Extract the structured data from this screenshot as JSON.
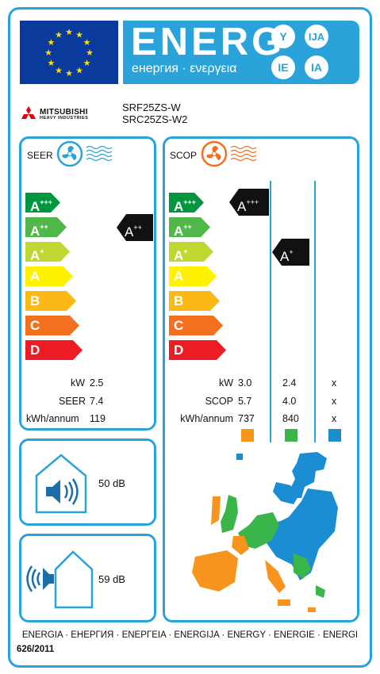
{
  "header": {
    "energy_word": "ENERG",
    "energy_sub": "енергия · ενεργεια",
    "lang_codes": [
      "Y",
      "IJA",
      "IE",
      "IA"
    ]
  },
  "product": {
    "brand_line1": "MITSUBISHI",
    "brand_line2": "HEAVY INDUSTRIES",
    "model_indoor": "SRF25ZS-W",
    "model_outdoor": "SRC25ZS-W2"
  },
  "cooling": {
    "label": "SEER",
    "classes": [
      {
        "base": "A",
        "sup": "+++",
        "color": "#00963f"
      },
      {
        "base": "A",
        "sup": "++",
        "color": "#50b848"
      },
      {
        "base": "A",
        "sup": "+",
        "color": "#bfd730"
      },
      {
        "base": "A",
        "sup": "",
        "color": "#fff200"
      },
      {
        "base": "B",
        "sup": "",
        "color": "#fcb814"
      },
      {
        "base": "C",
        "sup": "",
        "color": "#f37021"
      },
      {
        "base": "D",
        "sup": "",
        "color": "#ed1c24"
      }
    ],
    "rating": {
      "base": "A",
      "sup": "++"
    },
    "kw_label": "kW",
    "kw_value": "2.5",
    "seer_label": "SEER",
    "seer_value": "7.4",
    "kwh_label": "kWh/annum",
    "kwh_value": "119"
  },
  "heating": {
    "label": "SCOP",
    "rating_warm": {
      "base": "A",
      "sup": "+++"
    },
    "rating_average": {
      "base": "A",
      "sup": "+"
    },
    "kw_label": "kW",
    "scop_label": "SCOP",
    "kwh_label": "kWh/annum",
    "columns": [
      {
        "kw": "3.0",
        "scop": "5.7",
        "kwh": "737",
        "color": "#f7941d"
      },
      {
        "kw": "2.4",
        "scop": "4.0",
        "kwh": "840",
        "color": "#39b54a"
      },
      {
        "kw": "x",
        "scop": "x",
        "kwh": "x",
        "color": "#1b8dd3"
      }
    ]
  },
  "noise": {
    "indoor": "50 dB",
    "outdoor": "59 dB"
  },
  "footer": {
    "languages": "ENERGIA · ЕНЕРГИЯ · ΕΝΕΡΓΕΙΑ · ENERGIJA · ENERGY · ENERGIE · ENERGI",
    "regulation": "626/2011"
  }
}
